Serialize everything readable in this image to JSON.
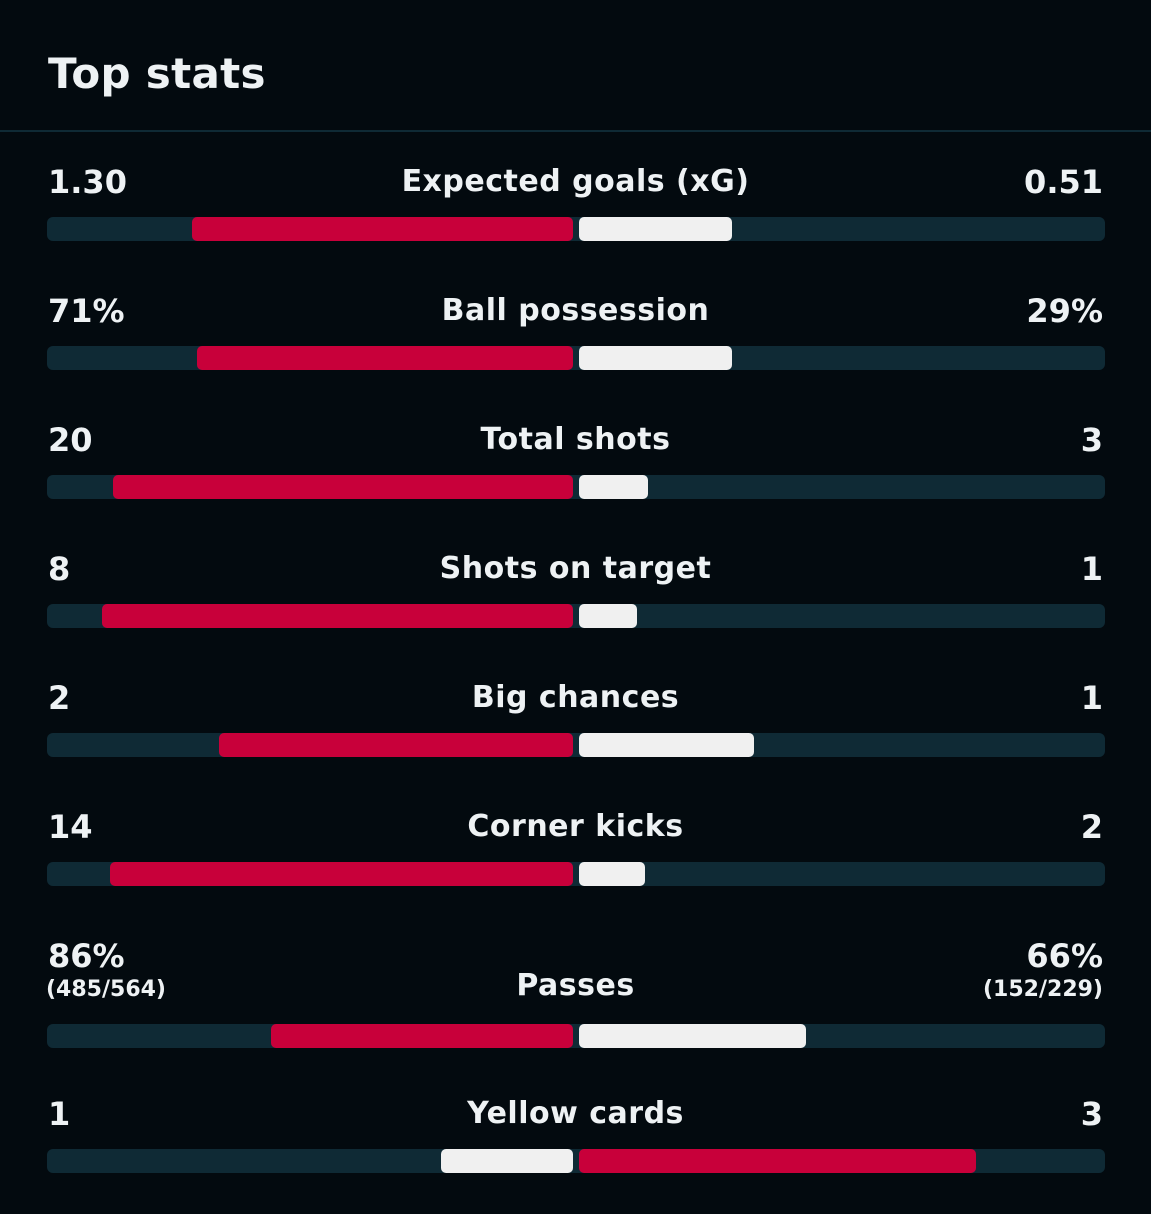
{
  "header": {
    "title": "Top stats"
  },
  "colors": {
    "background": "#030a0f",
    "track": "#0f2a35",
    "leading": "#c8003a",
    "trailing": "#f0f0f0",
    "text": "#eef2f4"
  },
  "stats": [
    {
      "label": "Expected goals (xG)",
      "home": "1.30",
      "away": "0.51",
      "home_fraction": 0.72,
      "away_fraction": 0.29,
      "leader": "home"
    },
    {
      "label": "Ball possession",
      "home": "71%",
      "away": "29%",
      "home_fraction": 0.71,
      "away_fraction": 0.29,
      "leader": "home"
    },
    {
      "label": "Total shots",
      "home": "20",
      "away": "3",
      "home_fraction": 0.87,
      "away_fraction": 0.13,
      "leader": "home"
    },
    {
      "label": "Shots on target",
      "home": "8",
      "away": "1",
      "home_fraction": 0.89,
      "away_fraction": 0.11,
      "leader": "home"
    },
    {
      "label": "Big chances",
      "home": "2",
      "away": "1",
      "home_fraction": 0.67,
      "away_fraction": 0.33,
      "leader": "home"
    },
    {
      "label": "Corner kicks",
      "home": "14",
      "away": "2",
      "home_fraction": 0.875,
      "away_fraction": 0.125,
      "leader": "home"
    },
    {
      "label": "Passes",
      "home": "86%",
      "away": "66%",
      "home_detail": "(485/564)",
      "away_detail": "(152/229)",
      "home_fraction": 0.57,
      "away_fraction": 0.43,
      "leader": "home"
    },
    {
      "label": "Yellow cards",
      "home": "1",
      "away": "3",
      "home_fraction": 0.25,
      "away_fraction": 0.75,
      "leader": "away"
    }
  ]
}
